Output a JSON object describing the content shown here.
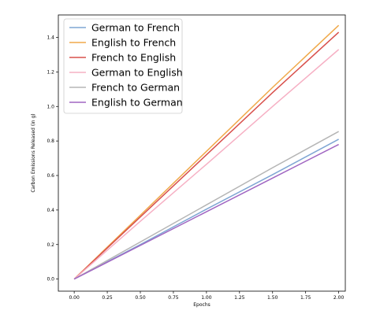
{
  "chart_data": {
    "type": "line",
    "title": "",
    "xlabel": "Epochs",
    "ylabel": "Carbon Emissions Released (in g)",
    "xlim": [
      -0.12,
      2.05
    ],
    "ylim": [
      -0.07,
      1.53
    ],
    "xticks": [
      "0.00",
      "0.25",
      "0.50",
      "0.75",
      "1.00",
      "1.25",
      "1.50",
      "1.75",
      "2.00"
    ],
    "yticks": [
      "0.0",
      "0.2",
      "0.4",
      "0.6",
      "0.8",
      "1.0",
      "1.2",
      "1.4"
    ],
    "grid": false,
    "legend_position": "top-left",
    "series": [
      {
        "name": "German to French",
        "color": "#7fa6d3",
        "x": [
          0,
          0.5,
          1.0,
          1.5,
          2.0
        ],
        "y": [
          0,
          0.2,
          0.405,
          0.605,
          0.81
        ]
      },
      {
        "name": "English to French",
        "color": "#f0a94a",
        "x": [
          0,
          0.5,
          1.0,
          1.5,
          2.0
        ],
        "y": [
          0,
          0.37,
          0.74,
          1.11,
          1.47
        ]
      },
      {
        "name": "French to English",
        "color": "#d8504c",
        "x": [
          0,
          0.5,
          1.0,
          1.5,
          2.0
        ],
        "y": [
          0,
          0.36,
          0.72,
          1.08,
          1.43
        ]
      },
      {
        "name": "German to English",
        "color": "#f6b0c4",
        "x": [
          0,
          0.5,
          1.0,
          1.5,
          2.0
        ],
        "y": [
          0,
          0.335,
          0.665,
          1.0,
          1.33
        ]
      },
      {
        "name": "French to German",
        "color": "#b5b5b5",
        "x": [
          0,
          0.5,
          1.0,
          1.5,
          2.0
        ],
        "y": [
          0,
          0.215,
          0.43,
          0.645,
          0.855
        ]
      },
      {
        "name": "English to German",
        "color": "#a066c2",
        "x": [
          0,
          0.5,
          1.0,
          1.5,
          2.0
        ],
        "y": [
          0,
          0.195,
          0.39,
          0.585,
          0.78
        ]
      }
    ]
  }
}
